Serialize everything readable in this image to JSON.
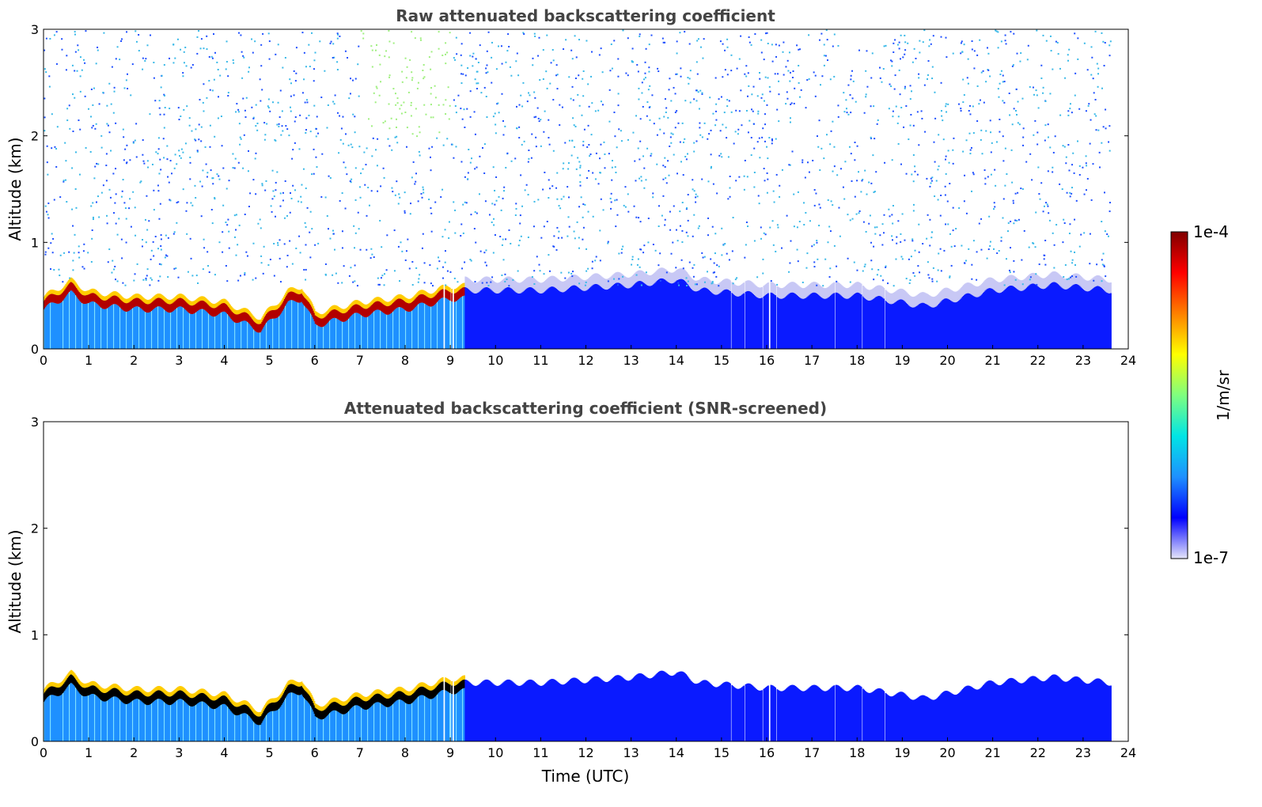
{
  "chart_data": [
    {
      "type": "heatmap",
      "title": "Raw attenuated backscattering coefficient",
      "xlabel": "",
      "ylabel": "Altitude (km)",
      "xlim": [
        0,
        24
      ],
      "ylim": [
        0,
        3
      ],
      "xticks": [
        "0",
        "1",
        "2",
        "3",
        "4",
        "5",
        "6",
        "7",
        "8",
        "9",
        "10",
        "11",
        "12",
        "13",
        "14",
        "15",
        "16",
        "17",
        "18",
        "19",
        "20",
        "21",
        "22",
        "23",
        "24"
      ],
      "yticks": [
        "0",
        "1",
        "2",
        "3"
      ],
      "data_end_hour": 23.6,
      "layer_top_km": [
        {
          "t": 0,
          "h": 0.45
        },
        {
          "t": 0.6,
          "h": 0.6
        },
        {
          "t": 1,
          "h": 0.5
        },
        {
          "t": 2,
          "h": 0.45
        },
        {
          "t": 3,
          "h": 0.45
        },
        {
          "t": 4,
          "h": 0.4
        },
        {
          "t": 4.8,
          "h": 0.25
        },
        {
          "t": 5.4,
          "h": 0.5
        },
        {
          "t": 5.7,
          "h": 0.55
        },
        {
          "t": 6,
          "h": 0.3
        },
        {
          "t": 7,
          "h": 0.4
        },
        {
          "t": 8,
          "h": 0.45
        },
        {
          "t": 9,
          "h": 0.55
        },
        {
          "t": 9.3,
          "h": 0.55
        },
        {
          "t": 11,
          "h": 0.55
        },
        {
          "t": 13,
          "h": 0.6
        },
        {
          "t": 14,
          "h": 0.65
        },
        {
          "t": 14.5,
          "h": 0.55
        },
        {
          "t": 16,
          "h": 0.5
        },
        {
          "t": 18,
          "h": 0.5
        },
        {
          "t": 19.5,
          "h": 0.4
        },
        {
          "t": 21,
          "h": 0.55
        },
        {
          "t": 22.3,
          "h": 0.6
        },
        {
          "t": 23.6,
          "h": 0.55
        }
      ],
      "gaps_hours": [
        8.85,
        9.0,
        9.05,
        15.2,
        15.5,
        15.9,
        16.05,
        16.2,
        17.5,
        18.1,
        18.6
      ]
    },
    {
      "type": "heatmap",
      "title": "Attenuated backscattering coefficient (SNR-screened)",
      "xlabel": "Time (UTC)",
      "ylabel": "Altitude (km)",
      "xlim": [
        0,
        24
      ],
      "ylim": [
        0,
        3
      ],
      "xticks": [
        "0",
        "1",
        "2",
        "3",
        "4",
        "5",
        "6",
        "7",
        "8",
        "9",
        "10",
        "11",
        "12",
        "13",
        "14",
        "15",
        "16",
        "17",
        "18",
        "19",
        "20",
        "21",
        "22",
        "23",
        "24"
      ],
      "yticks": [
        "0",
        "1",
        "2",
        "3"
      ],
      "data_end_hour": 23.6
    }
  ],
  "colorbar": {
    "label": "1/m/sr",
    "max_label": "1e-4",
    "min_label": "1e-7",
    "min": 1e-07,
    "max": 0.0001,
    "colors": [
      "#e6e6fa",
      "#0000ff",
      "#1e90ff",
      "#00e5e5",
      "#7fff7f",
      "#ffff00",
      "#ff8000",
      "#ff0000",
      "#800000"
    ]
  }
}
